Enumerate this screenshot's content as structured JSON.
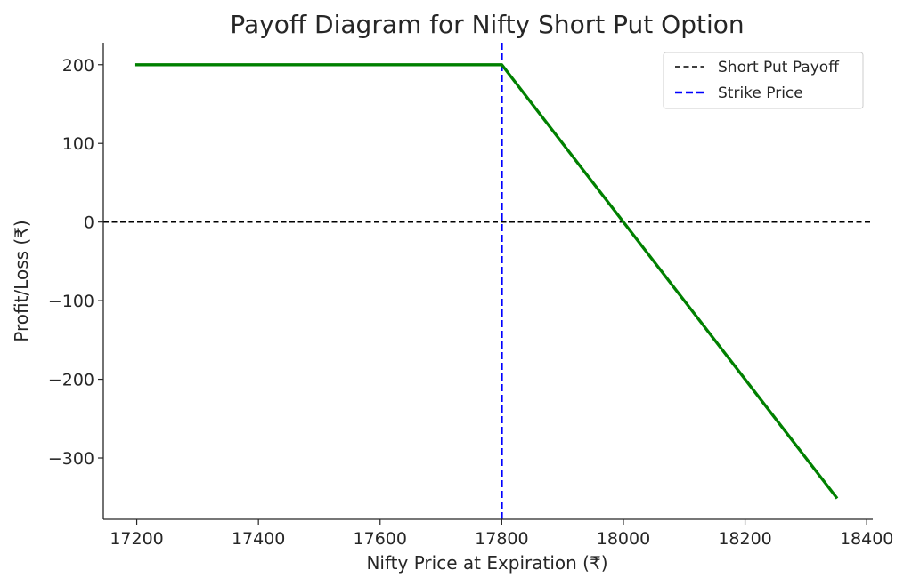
{
  "chart_data": {
    "type": "line",
    "title": "Payoff Diagram for Nifty Short Put Option",
    "xlabel": "Nifty Price at Expiration (₹)",
    "ylabel": "Profit/Loss (₹)",
    "xlim": [
      17145,
      18410
    ],
    "ylim": [
      -378,
      228
    ],
    "xticks": [
      17200,
      17400,
      17600,
      17800,
      18000,
      18200,
      18400
    ],
    "yticks": [
      -300,
      -200,
      -100,
      0,
      100,
      200
    ],
    "xtick_labels": [
      "17200",
      "17400",
      "17600",
      "17800",
      "18000",
      "18200",
      "18400"
    ],
    "ytick_labels": [
      "−300",
      "−200",
      "−100",
      "0",
      "100",
      "200"
    ],
    "grid": false,
    "legend_position": "top-right",
    "series": [
      {
        "name": "",
        "color": "#008000",
        "style": "solid",
        "x": [
          17200,
          17800,
          18350
        ],
        "y": [
          200,
          200,
          -350
        ]
      }
    ],
    "reference_lines": [
      {
        "name": "Short Put Payoff",
        "orientation": "horizontal",
        "value": 0,
        "color": "#000000",
        "style": "dashed"
      },
      {
        "name": "Strike Price",
        "orientation": "vertical",
        "value": 17800,
        "color": "#0000ff",
        "style": "dashed"
      }
    ]
  }
}
